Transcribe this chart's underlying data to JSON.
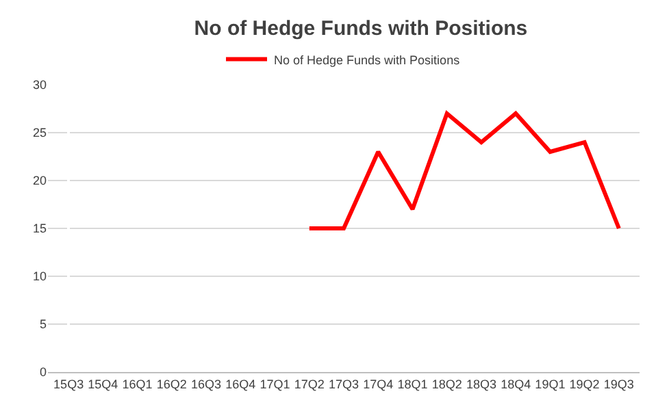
{
  "chart_data": {
    "type": "line",
    "title": "No of Hedge Funds with Positions",
    "categories": [
      "15Q3",
      "15Q4",
      "16Q1",
      "16Q2",
      "16Q3",
      "16Q4",
      "17Q1",
      "17Q2",
      "17Q3",
      "17Q4",
      "18Q1",
      "18Q2",
      "18Q3",
      "18Q4",
      "19Q1",
      "19Q2",
      "19Q3"
    ],
    "series": [
      {
        "name": "No of Hedge Funds with Positions",
        "color": "#ff0000",
        "values": [
          null,
          null,
          null,
          null,
          null,
          null,
          null,
          15,
          15,
          23,
          17,
          27,
          24,
          27,
          23,
          24,
          15
        ]
      }
    ],
    "ylim": [
      0,
      30
    ],
    "yticks": [
      0,
      5,
      10,
      15,
      20,
      25,
      30
    ],
    "grid": "y",
    "legend": "top",
    "marker": "none",
    "line_style": "solid"
  }
}
